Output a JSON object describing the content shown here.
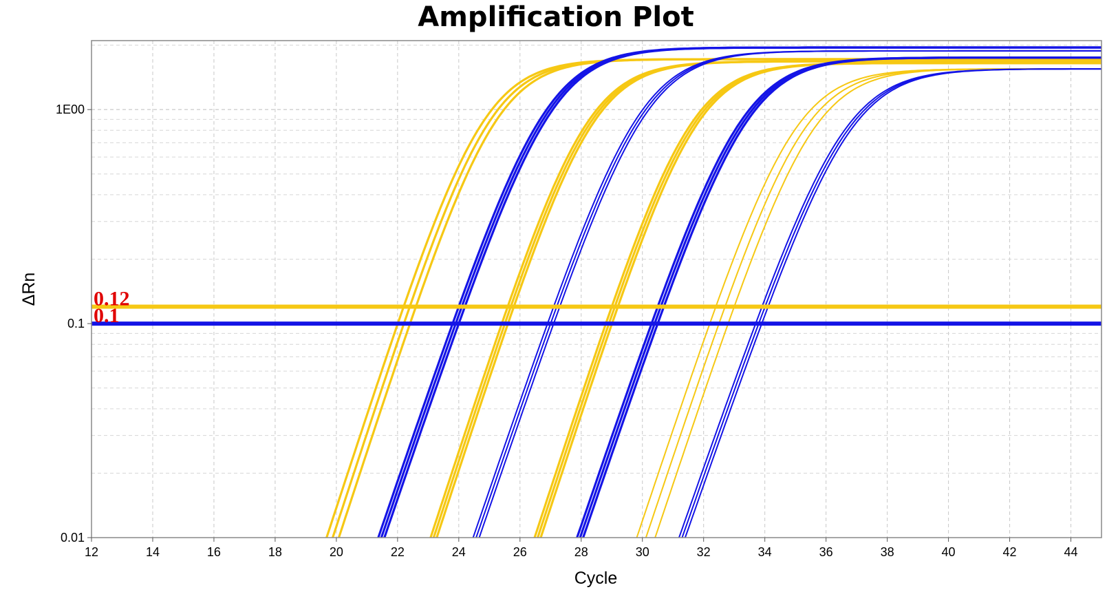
{
  "chart_data": {
    "type": "line",
    "title": "Amplification Plot",
    "xlabel": "Cycle",
    "ylabel": "ΔRn",
    "xlim": [
      12,
      45
    ],
    "ylim": [
      0.01,
      2.1
    ],
    "y_scale": "log",
    "grid": true,
    "x_ticks": [
      "12",
      "14",
      "16",
      "18",
      "20",
      "22",
      "24",
      "26",
      "28",
      "30",
      "32",
      "34",
      "36",
      "38",
      "40",
      "42",
      "44"
    ],
    "y_ticks": [
      {
        "value": 0.01,
        "label": "0.01"
      },
      {
        "value": 0.1,
        "label": "0.1"
      },
      {
        "value": 1,
        "label": "1E00"
      }
    ],
    "colors": {
      "blue": "#1414e6",
      "gold": "#f6c814",
      "threshold_text": "#e00000"
    },
    "thresholds": [
      {
        "value": 0.12,
        "label": "0.12",
        "color": "#f6c814"
      },
      {
        "value": 0.1,
        "label": "0.1",
        "color": "#1414e6"
      }
    ],
    "curve_model": "log10(dRn) = log10(plateau) - log10(1 + 10^(k*(ct - cycle)) * (plateau/threshold - 1))",
    "curve_groups": [
      {
        "color": "#f6c814",
        "threshold": 0.12,
        "k": 0.44,
        "plateau": 1.72,
        "replicates_ct": [
          22.2,
          22.4,
          22.6
        ],
        "thick": true
      },
      {
        "color": "#1414e6",
        "threshold": 0.1,
        "k": 0.42,
        "plateau": 1.95,
        "replicates_ct": [
          23.8,
          23.9,
          24.0
        ],
        "thick": true
      },
      {
        "color": "#f6c814",
        "threshold": 0.12,
        "k": 0.44,
        "plateau": 1.68,
        "replicates_ct": [
          25.6,
          25.7,
          25.8
        ],
        "thick": true
      },
      {
        "color": "#1414e6",
        "threshold": 0.1,
        "k": 0.42,
        "plateau": 1.88,
        "replicates_ct": [
          26.9,
          27.0,
          27.1
        ],
        "thick": false
      },
      {
        "color": "#f6c814",
        "threshold": 0.12,
        "k": 0.44,
        "plateau": 1.65,
        "replicates_ct": [
          29.0,
          29.1,
          29.2
        ],
        "thick": true
      },
      {
        "color": "#1414e6",
        "threshold": 0.1,
        "k": 0.42,
        "plateau": 1.75,
        "replicates_ct": [
          30.3,
          30.4,
          30.5
        ],
        "thick": true
      },
      {
        "color": "#f6c814",
        "threshold": 0.12,
        "k": 0.43,
        "plateau": 1.55,
        "replicates_ct": [
          32.4,
          32.7,
          33.0
        ],
        "thick": false
      },
      {
        "color": "#1414e6",
        "threshold": 0.1,
        "k": 0.41,
        "plateau": 1.55,
        "replicates_ct": [
          33.7,
          33.8,
          33.9
        ],
        "thick": false
      }
    ]
  }
}
